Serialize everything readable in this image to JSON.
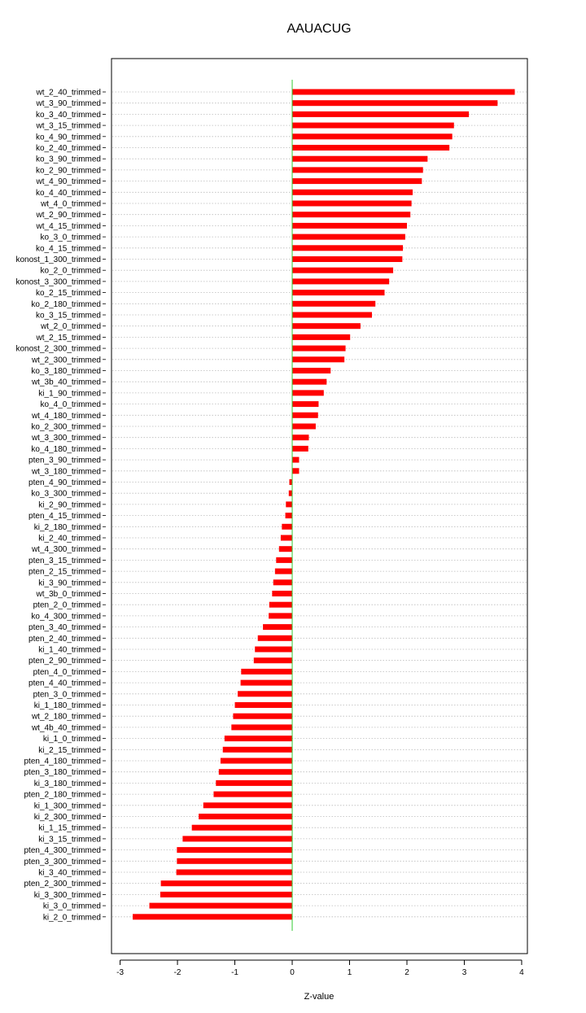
{
  "chart_data": {
    "type": "bar",
    "orientation": "horizontal",
    "title": "AAUACUG",
    "xlabel": "Z-value",
    "ylabel": "",
    "xlim": [
      -3.15,
      4.1
    ],
    "xticks": [
      -3,
      -2,
      -1,
      0,
      1,
      2,
      3,
      4
    ],
    "grid": "horizontal dotted",
    "colors": {
      "bar": "#ff0000",
      "zero_line": "#33cc33",
      "grid": "#bbbbbb"
    },
    "categories": [
      "wt_2_40_trimmed",
      "wt_3_90_trimmed",
      "ko_3_40_trimmed",
      "wt_3_15_trimmed",
      "ko_4_90_trimmed",
      "ko_2_40_trimmed",
      "ko_3_90_trimmed",
      "ko_2_90_trimmed",
      "wt_4_90_trimmed",
      "ko_4_40_trimmed",
      "wt_4_0_trimmed",
      "wt_2_90_trimmed",
      "wt_4_15_trimmed",
      "ko_3_0_trimmed",
      "ko_4_15_trimmed",
      "konost_1_300_trimmed",
      "ko_2_0_trimmed",
      "konost_3_300_trimmed",
      "ko_2_15_trimmed",
      "ko_2_180_trimmed",
      "ko_3_15_trimmed",
      "wt_2_0_trimmed",
      "wt_2_15_trimmed",
      "konost_2_300_trimmed",
      "wt_2_300_trimmed",
      "ko_3_180_trimmed",
      "wt_3b_40_trimmed",
      "ki_1_90_trimmed",
      "ko_4_0_trimmed",
      "wt_4_180_trimmed",
      "ko_2_300_trimmed",
      "wt_3_300_trimmed",
      "ko_4_180_trimmed",
      "pten_3_90_trimmed",
      "wt_3_180_trimmed",
      "pten_4_90_trimmed",
      "ko_3_300_trimmed",
      "ki_2_90_trimmed",
      "pten_4_15_trimmed",
      "ki_2_180_trimmed",
      "ki_2_40_trimmed",
      "wt_4_300_trimmed",
      "pten_3_15_trimmed",
      "pten_2_15_trimmed",
      "ki_3_90_trimmed",
      "wt_3b_0_trimmed",
      "pten_2_0_trimmed",
      "ko_4_300_trimmed",
      "pten_3_40_trimmed",
      "pten_2_40_trimmed",
      "ki_1_40_trimmed",
      "pten_2_90_trimmed",
      "pten_4_0_trimmed",
      "pten_4_40_trimmed",
      "pten_3_0_trimmed",
      "ki_1_180_trimmed",
      "wt_2_180_trimmed",
      "wt_4b_40_trimmed",
      "ki_1_0_trimmed",
      "ki_2_15_trimmed",
      "pten_4_180_trimmed",
      "pten_3_180_trimmed",
      "ki_3_180_trimmed",
      "pten_2_180_trimmed",
      "ki_1_300_trimmed",
      "ki_2_300_trimmed",
      "ki_1_15_trimmed",
      "ki_3_15_trimmed",
      "pten_4_300_trimmed",
      "pten_3_300_trimmed",
      "ki_3_40_trimmed",
      "pten_2_300_trimmed",
      "ki_3_300_trimmed",
      "ki_3_0_trimmed",
      "ki_2_0_trimmed"
    ],
    "values": [
      3.88,
      3.58,
      3.08,
      2.82,
      2.79,
      2.74,
      2.36,
      2.28,
      2.26,
      2.1,
      2.08,
      2.06,
      2.0,
      1.97,
      1.93,
      1.92,
      1.76,
      1.69,
      1.61,
      1.45,
      1.39,
      1.19,
      1.01,
      0.93,
      0.91,
      0.67,
      0.6,
      0.55,
      0.46,
      0.45,
      0.41,
      0.29,
      0.28,
      0.12,
      0.12,
      -0.05,
      -0.06,
      -0.11,
      -0.12,
      -0.18,
      -0.2,
      -0.23,
      -0.28,
      -0.3,
      -0.33,
      -0.35,
      -0.4,
      -0.41,
      -0.51,
      -0.6,
      -0.65,
      -0.67,
      -0.89,
      -0.9,
      -0.95,
      -1.0,
      -1.03,
      -1.06,
      -1.18,
      -1.21,
      -1.25,
      -1.28,
      -1.33,
      -1.37,
      -1.55,
      -1.63,
      -1.75,
      -1.91,
      -2.01,
      -2.01,
      -2.02,
      -2.29,
      -2.3,
      -2.49,
      -2.78
    ]
  }
}
